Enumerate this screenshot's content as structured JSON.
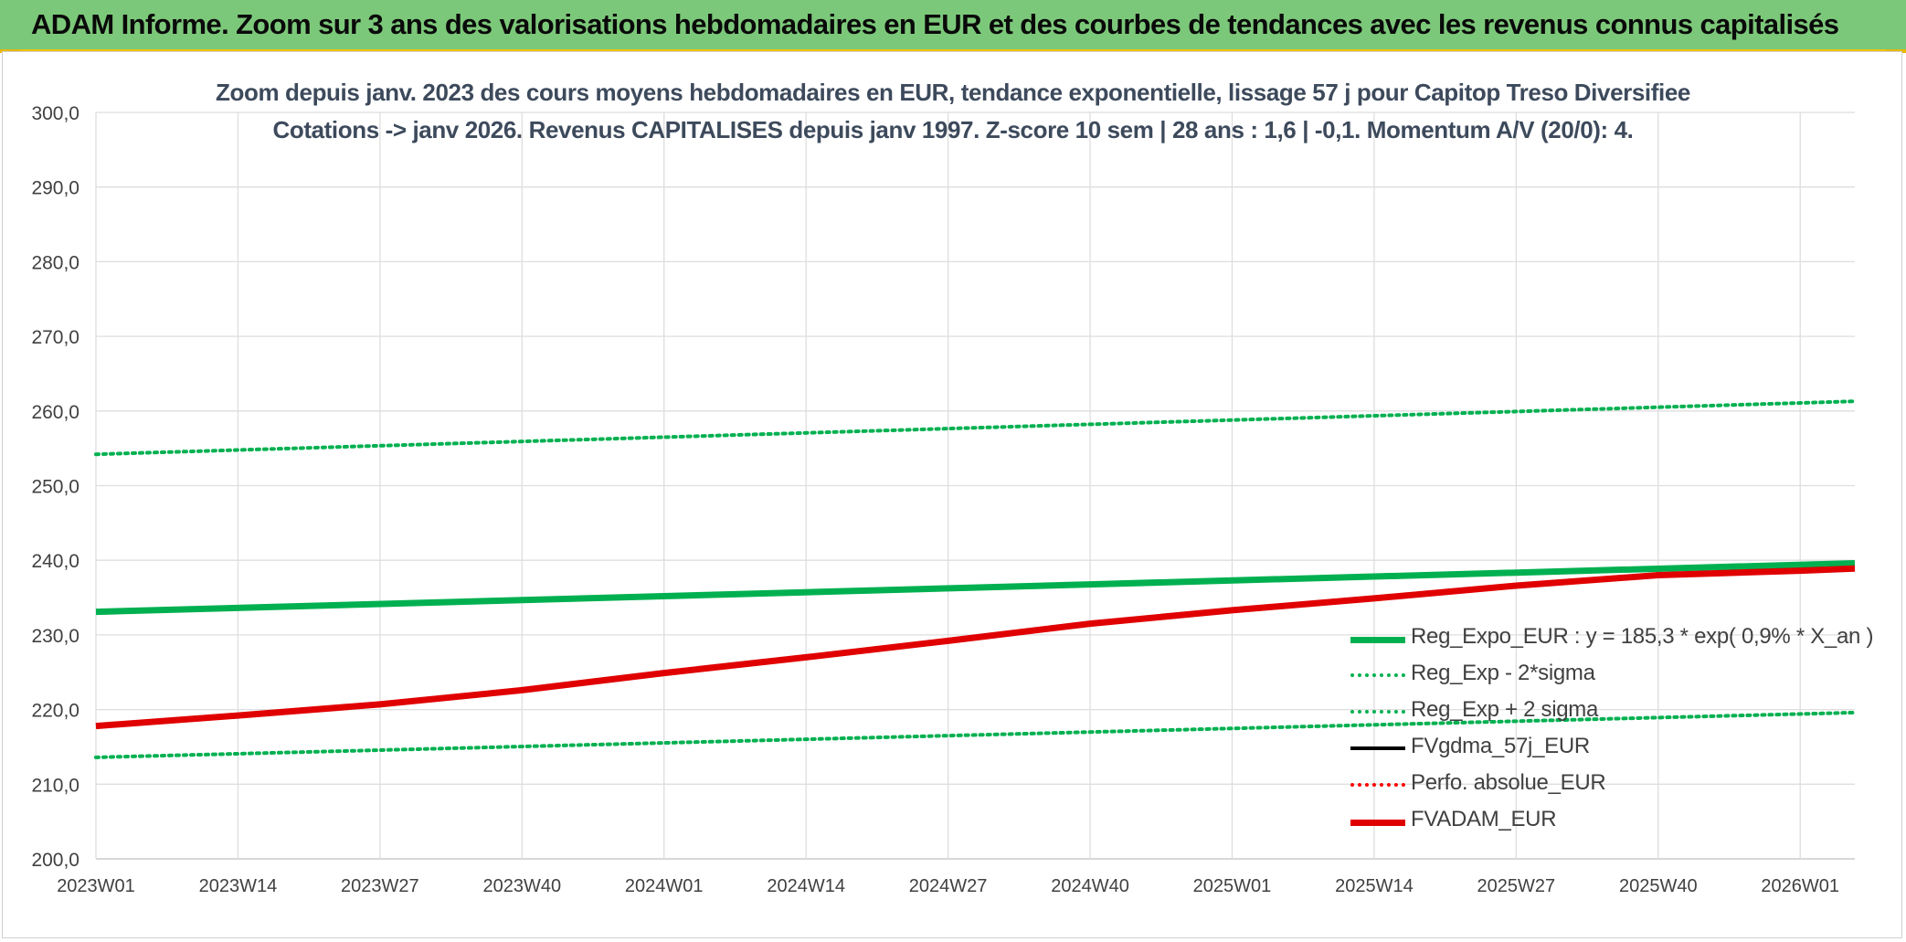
{
  "banner": {
    "title": "ADAM Informe. Zoom sur 3 ans des valorisations hebdomadaires en EUR et des courbes de tendances avec les revenus connus capitalisés"
  },
  "chart_data": {
    "type": "line",
    "title": "Zoom depuis janv. 2023 des cours moyens hebdomadaires en EUR, tendance exponentielle, lissage 57 j pour Capitop Treso Diversifiee",
    "subtitle": "Cotations -> janv 2026. Revenus CAPITALISES depuis janv 1997. Z-score 10 sem | 28 ans : 1,6 | -0,1. Momentum A/V (20/0): 4.",
    "xlabel": "",
    "ylabel": "",
    "ylim": [
      200,
      300
    ],
    "y_ticks": [
      "200,0",
      "210,0",
      "220,0",
      "230,0",
      "240,0",
      "250,0",
      "260,0",
      "270,0",
      "280,0",
      "290,0",
      "300,0"
    ],
    "x_ticks": [
      "2023W01",
      "2023W14",
      "2023W27",
      "2023W40",
      "2024W01",
      "2024W14",
      "2024W27",
      "2024W40",
      "2025W01",
      "2025W14",
      "2025W27",
      "2025W40",
      "2026W01"
    ],
    "x_range_weeks": [
      0,
      161
    ],
    "grid": true,
    "legend_position": "bottom-right",
    "series": [
      {
        "name": "Reg_Expo_EUR : y = 185,3 * exp( 0,9% *  X_an )",
        "style": "solid-thick",
        "color": "#00b050",
        "x": [
          0,
          161
        ],
        "values": [
          233.1,
          239.6
        ]
      },
      {
        "name": "Reg_Exp - 2*sigma",
        "style": "dotted",
        "color": "#00b050",
        "x": [
          0,
          161
        ],
        "values": [
          213.6,
          219.6
        ]
      },
      {
        "name": "Reg_Exp + 2 sigma",
        "style": "dotted",
        "color": "#00b050",
        "x": [
          0,
          161
        ],
        "values": [
          254.2,
          261.3
        ]
      },
      {
        "name": "FVgdma_57j_EUR",
        "style": "solid",
        "color": "#000000",
        "x": [
          0,
          13,
          26,
          39,
          52,
          65,
          78,
          91,
          104,
          117,
          130,
          143,
          156,
          161
        ],
        "values": [
          217.8,
          219.2,
          220.7,
          222.6,
          224.9,
          227.0,
          229.2,
          231.5,
          233.3,
          234.9,
          236.6,
          238.0,
          238.6,
          238.9
        ]
      },
      {
        "name": "Perfo. absolue_EUR",
        "style": "dotted",
        "color": "#ff0000",
        "x": [],
        "values": []
      },
      {
        "name": "FVADAM_EUR",
        "style": "solid-thick",
        "color": "#e00000",
        "x": [
          0,
          13,
          26,
          39,
          52,
          65,
          78,
          91,
          104,
          117,
          130,
          143,
          156,
          161
        ],
        "values": [
          217.8,
          219.2,
          220.7,
          222.6,
          224.9,
          227.0,
          229.2,
          231.5,
          233.3,
          234.9,
          236.6,
          238.0,
          238.6,
          238.9
        ]
      }
    ]
  }
}
